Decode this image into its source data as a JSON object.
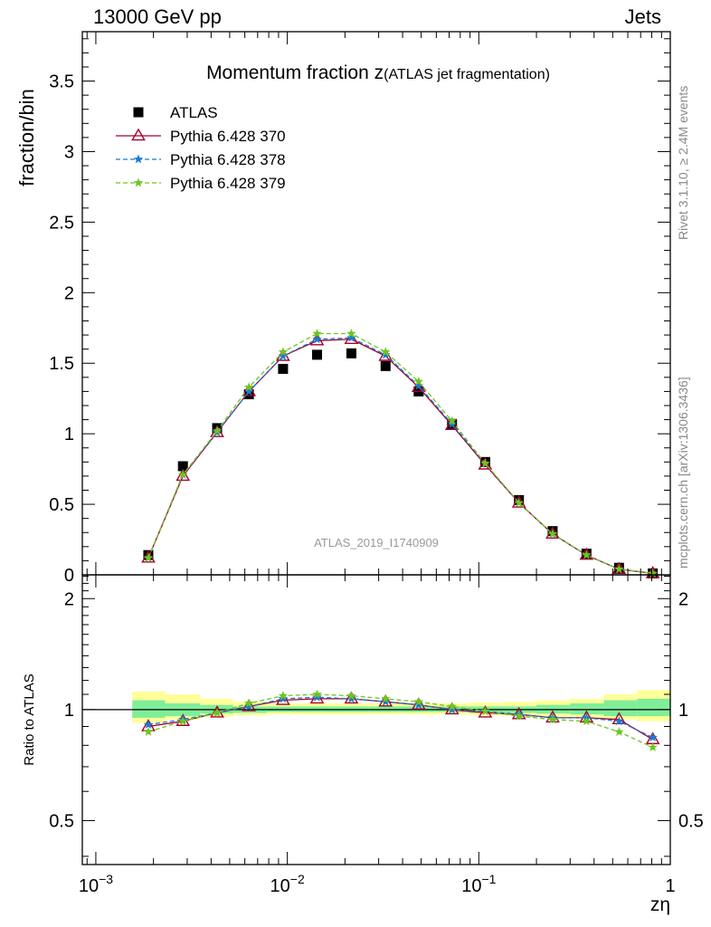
{
  "header": {
    "left": "13000 GeV pp",
    "right": "Jets"
  },
  "side_labels": {
    "rivet": "Rivet 3.1.10, ≥ 2.4M events",
    "mcplots": "mcplots.cern.ch [arXiv:1306.3436]"
  },
  "chart_data": [
    {
      "type": "scatter",
      "panel": "main",
      "title_main": "Momentum fraction ",
      "title_var": "z",
      "title_sub": "(ATLAS jet fragmentation)",
      "analysis_label": "ATLAS_2019_I1740909",
      "ylabel": "fraction/bin",
      "xscale": "log",
      "xlim": [
        0.00085,
        1.0
      ],
      "ylim": [
        0,
        3.85
      ],
      "yticks": [
        0,
        0.5,
        1,
        1.5,
        2,
        2.5,
        3,
        3.5
      ],
      "ytick_labels": [
        "0",
        "0.5",
        "1",
        "1.5",
        "2",
        "2.5",
        "3",
        "3.5"
      ],
      "x": [
        0.00188,
        0.00285,
        0.0043,
        0.0063,
        0.0095,
        0.0143,
        0.0216,
        0.0326,
        0.0485,
        0.0725,
        0.108,
        0.162,
        0.243,
        0.365,
        0.54,
        0.81
      ],
      "series": [
        {
          "name": "ATLAS",
          "color": "#000000",
          "style": "data",
          "values": [
            0.14,
            0.77,
            1.04,
            1.28,
            1.46,
            1.56,
            1.57,
            1.48,
            1.3,
            1.07,
            0.8,
            0.53,
            0.31,
            0.15,
            0.05,
            0.01
          ]
        },
        {
          "name": "Pythia 6.428 370",
          "color": "#a5002c",
          "style": "solid-triangle",
          "values": [
            0.12,
            0.7,
            1.01,
            1.3,
            1.55,
            1.66,
            1.67,
            1.55,
            1.33,
            1.06,
            0.78,
            0.51,
            0.29,
            0.14,
            0.04,
            0.01
          ]
        },
        {
          "name": "Pythia 6.428 378",
          "color": "#1a7ad4",
          "style": "dashed-star",
          "values": [
            0.12,
            0.71,
            1.01,
            1.3,
            1.55,
            1.67,
            1.68,
            1.56,
            1.34,
            1.07,
            0.79,
            0.51,
            0.29,
            0.14,
            0.04,
            0.01
          ]
        },
        {
          "name": "Pythia 6.428 379",
          "color": "#6ec51e",
          "style": "dashed-star",
          "values": [
            0.12,
            0.71,
            1.02,
            1.33,
            1.58,
            1.71,
            1.71,
            1.58,
            1.37,
            1.09,
            0.79,
            0.51,
            0.29,
            0.14,
            0.04,
            0.01
          ]
        }
      ]
    },
    {
      "type": "line",
      "panel": "ratio",
      "ylabel": "Ratio to ATLAS",
      "xlabel": "zη",
      "xscale": "log",
      "xlim": [
        0.00085,
        1.0
      ],
      "ylim": [
        0.38,
        2.32
      ],
      "xticks": [
        0.001,
        0.01,
        0.1,
        1
      ],
      "xtick_labels": [
        "10",
        "10",
        "10",
        "1"
      ],
      "xtick_exps": [
        "−3",
        "−2",
        "−1",
        ""
      ],
      "yticks": [
        0.5,
        1,
        2
      ],
      "ytick_labels": [
        "0.5",
        "1",
        "2"
      ],
      "x": [
        0.00188,
        0.00285,
        0.0043,
        0.0063,
        0.0095,
        0.0143,
        0.0216,
        0.0326,
        0.0485,
        0.0725,
        0.108,
        0.162,
        0.243,
        0.365,
        0.54,
        0.81
      ],
      "bin_edges": [
        0.00155,
        0.0023,
        0.0035,
        0.0052,
        0.0078,
        0.0117,
        0.0176,
        0.0265,
        0.0395,
        0.059,
        0.089,
        0.133,
        0.2,
        0.3,
        0.45,
        0.67,
        1.0
      ],
      "band_stat": [
        [
          0.95,
          1.06
        ],
        [
          0.96,
          1.04
        ],
        [
          0.975,
          1.03
        ],
        [
          0.98,
          1.02
        ],
        [
          0.985,
          1.02
        ],
        [
          0.985,
          1.02
        ],
        [
          0.985,
          1.02
        ],
        [
          0.985,
          1.02
        ],
        [
          0.985,
          1.02
        ],
        [
          0.985,
          1.02
        ],
        [
          0.98,
          1.02
        ],
        [
          0.98,
          1.02
        ],
        [
          0.975,
          1.03
        ],
        [
          0.97,
          1.04
        ],
        [
          0.96,
          1.06
        ],
        [
          0.96,
          1.07
        ]
      ],
      "band_total": [
        [
          0.92,
          1.12
        ],
        [
          0.94,
          1.1
        ],
        [
          0.955,
          1.07
        ],
        [
          0.965,
          1.05
        ],
        [
          0.97,
          1.04
        ],
        [
          0.97,
          1.04
        ],
        [
          0.97,
          1.04
        ],
        [
          0.97,
          1.04
        ],
        [
          0.97,
          1.04
        ],
        [
          0.97,
          1.04
        ],
        [
          0.965,
          1.045
        ],
        [
          0.96,
          1.05
        ],
        [
          0.955,
          1.06
        ],
        [
          0.95,
          1.07
        ],
        [
          0.94,
          1.1
        ],
        [
          0.93,
          1.13
        ]
      ],
      "series": [
        {
          "name": "Pythia 6.428 370",
          "color": "#a5002c",
          "values": [
            0.9,
            0.93,
            0.98,
            1.02,
            1.06,
            1.07,
            1.07,
            1.05,
            1.03,
            1.0,
            0.98,
            0.97,
            0.95,
            0.95,
            0.94,
            0.83
          ]
        },
        {
          "name": "Pythia 6.428 378",
          "color": "#1a7ad4",
          "values": [
            0.91,
            0.94,
            0.98,
            1.02,
            1.07,
            1.08,
            1.07,
            1.05,
            1.03,
            1.0,
            0.99,
            0.97,
            0.95,
            0.95,
            0.93,
            0.84
          ]
        },
        {
          "name": "Pythia 6.428 379",
          "color": "#6ec51e",
          "values": [
            0.87,
            0.93,
            0.98,
            1.04,
            1.09,
            1.1,
            1.09,
            1.07,
            1.05,
            1.02,
            0.99,
            0.96,
            0.94,
            0.93,
            0.87,
            0.79
          ]
        }
      ]
    }
  ]
}
